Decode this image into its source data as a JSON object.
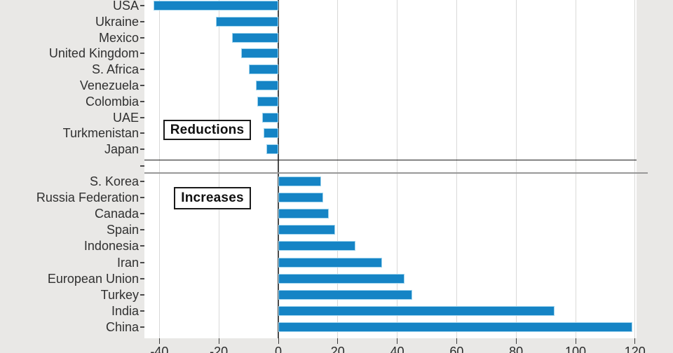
{
  "chart_data": {
    "type": "bar",
    "orientation": "horizontal",
    "title": "",
    "xlabel": "",
    "x_ticks": [
      -40,
      -20,
      0,
      20,
      40,
      60,
      80,
      100,
      120
    ],
    "x_tick_labels": [
      "-40",
      "-20",
      "0",
      "20",
      "40",
      "60",
      "80",
      "100",
      "120"
    ],
    "xlim": [
      -45,
      121
    ],
    "grid": true,
    "bar_color": "#1584c5",
    "bar_edge_color": "#9fd4ee",
    "groups": [
      {
        "label": "Reductions",
        "categories": [
          "USA",
          "Ukraine",
          "Mexico",
          "United Kingdom",
          "S. Africa",
          "Venezuela",
          "Colombia",
          "UAE",
          "Turkmenistan",
          "Japan"
        ],
        "values": [
          -42,
          -21,
          -15.5,
          -12.5,
          -10,
          -7.5,
          -7,
          -5.5,
          -5,
          -4
        ]
      },
      {
        "label": "Increases",
        "categories": [
          "S. Korea",
          "Russia Federation",
          "Canada",
          "Spain",
          "Indonesia",
          "Iran",
          "European Union",
          "Turkey",
          "India",
          "China"
        ],
        "values": [
          14.5,
          15,
          17,
          19,
          26,
          35,
          42.5,
          45,
          93,
          119
        ]
      }
    ]
  }
}
